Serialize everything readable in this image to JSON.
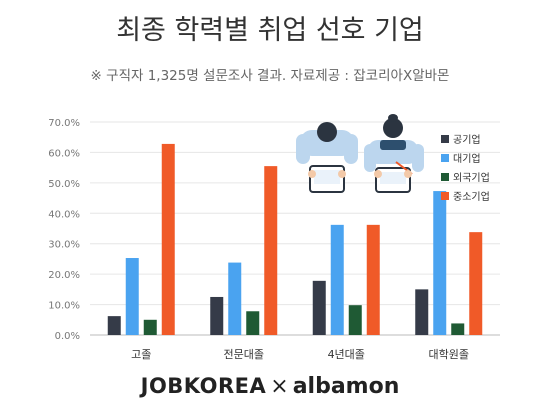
{
  "title": "최종 학력별 취업 선호 기업",
  "subtitle": "※ 구직자  1,325명 설문조사 결과. 자료제공 : 잡코리아X알바몬",
  "footer": {
    "brand_left": "JOBKOREA",
    "separator": "×",
    "brand_right": "albamon"
  },
  "chart_data": {
    "type": "bar",
    "categories": [
      "고졸",
      "전문대졸",
      "4년대졸",
      "대학원졸"
    ],
    "series": [
      {
        "name": "공기업",
        "color": "#353b48",
        "values": [
          6.2,
          12.5,
          17.8,
          15.0
        ]
      },
      {
        "name": "대기업",
        "color": "#4aa3f0",
        "values": [
          25.3,
          23.8,
          36.2,
          47.3
        ]
      },
      {
        "name": "외국기업",
        "color": "#1f5a34",
        "values": [
          5.0,
          7.8,
          9.8,
          3.8
        ]
      },
      {
        "name": "중소기업",
        "color": "#f05a28",
        "values": [
          62.8,
          55.5,
          36.2,
          33.8
        ]
      }
    ],
    "yticks": [
      "0.0%",
      "10.0%",
      "20.0%",
      "30.0%",
      "40.0%",
      "50.0%",
      "60.0%",
      "70.0%"
    ],
    "ylim": [
      0,
      70
    ],
    "grid": true,
    "legend_position": "top-right"
  }
}
